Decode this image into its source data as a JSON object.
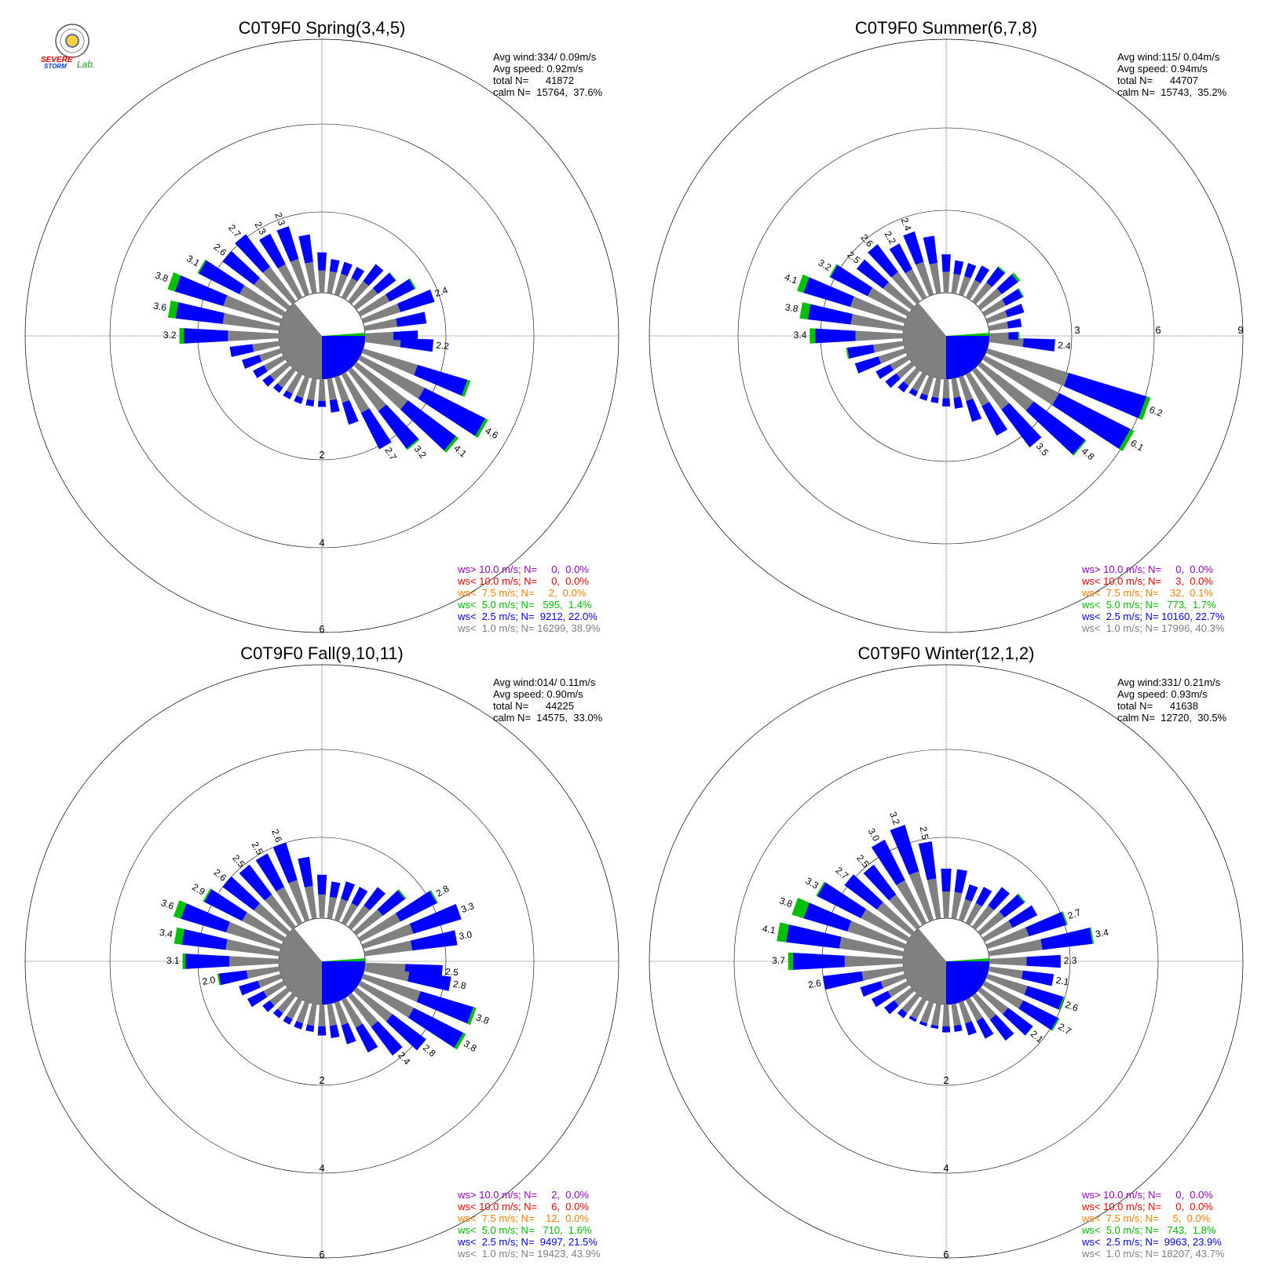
{
  "logo": {
    "lines": [
      "SEVERE",
      "STORM",
      "Lab."
    ],
    "name": "severe-storm-lab-logo"
  },
  "colors": {
    "gray": "#808080",
    "blue": "#0000ff",
    "green": "#00c000",
    "orange": "#ff8000",
    "red": "#ff0000",
    "purple": "#9900cc",
    "calm": "#808080"
  },
  "chart_data": [
    {
      "type": "polar-bar",
      "title": "C0T9F0 Spring(3,4,5)",
      "stats": [
        "Avg wind:334/ 0.09m/s",
        "Avg speed: 0.92m/s",
        "total N=      41872",
        "calm N=  15764,  37.6%"
      ],
      "ring_labels": [
        "2",
        "4",
        "6"
      ],
      "calm_pct": 37.6,
      "legend": [
        {
          "text": "ws> 10.0 m/s; N=     0,  0.0%",
          "color": "#9900cc"
        },
        {
          "text": "ws< 10.0 m/s; N=     0,  0.0%",
          "color": "#ff0000"
        },
        {
          "text": "ws<  7.5 m/s; N=     2,  0.0%",
          "color": "#ff8000"
        },
        {
          "text": "ws<  5.0 m/s; N=   595,  1.4%",
          "color": "#00c000"
        },
        {
          "text": "ws<  2.5 m/s; N=  9212, 22.0%",
          "color": "#0000ff"
        },
        {
          "text": "ws<  1.0 m/s; N= 16299, 38.9%",
          "color": "#808080"
        }
      ],
      "directions": [
        {
          "dir": 95,
          "total": 2.2,
          "green": 0.0,
          "label": "2.2"
        },
        {
          "dir": 110,
          "total": 3.6,
          "green": 0.1
        },
        {
          "dir": 120,
          "total": 4.6,
          "green": 0.1,
          "label": "4.6"
        },
        {
          "dir": 130,
          "total": 4.1,
          "green": 0.1,
          "label": "4.1"
        },
        {
          "dir": 140,
          "total": 3.2,
          "green": 0.05,
          "label": "3.2"
        },
        {
          "dir": 150,
          "total": 2.7,
          "green": 0.0,
          "label": "2.7"
        },
        {
          "dir": 160,
          "total": 1.6,
          "green": 0.0
        },
        {
          "dir": 170,
          "total": 1.1,
          "green": 0.0
        },
        {
          "dir": 180,
          "total": 0.9,
          "green": 0.0
        },
        {
          "dir": 190,
          "total": 0.9,
          "green": 0.0
        },
        {
          "dir": 200,
          "total": 0.9,
          "green": 0.0
        },
        {
          "dir": 210,
          "total": 0.9,
          "green": 0.0
        },
        {
          "dir": 220,
          "total": 0.9,
          "green": 0.0
        },
        {
          "dir": 230,
          "total": 1.0,
          "green": 0.0
        },
        {
          "dir": 240,
          "total": 1.1,
          "green": 0.0
        },
        {
          "dir": 250,
          "total": 1.3,
          "green": 0.0
        },
        {
          "dir": 260,
          "total": 1.6,
          "green": 0.0
        },
        {
          "dir": 270,
          "total": 3.2,
          "green": 0.15,
          "label": "3.2"
        },
        {
          "dir": 280,
          "total": 3.6,
          "green": 0.25,
          "label": "3.6"
        },
        {
          "dir": 290,
          "total": 3.8,
          "green": 0.25,
          "label": "3.8"
        },
        {
          "dir": 300,
          "total": 3.1,
          "green": 0.05,
          "label": "3.1"
        },
        {
          "dir": 310,
          "total": 2.6,
          "green": 0.0,
          "label": "2.6"
        },
        {
          "dir": 320,
          "total": 2.7,
          "green": 0.0,
          "label": "2.7"
        },
        {
          "dir": 330,
          "total": 2.3,
          "green": 0.0,
          "label": "2.3"
        },
        {
          "dir": 340,
          "total": 2.3,
          "green": 0.0,
          "label": "2.3"
        },
        {
          "dir": 350,
          "total": 1.9,
          "green": 0.0
        },
        {
          "dir": 0,
          "total": 1.3,
          "green": 0.0
        },
        {
          "dir": 10,
          "total": 1.1,
          "green": 0.0
        },
        {
          "dir": 20,
          "total": 1.1,
          "green": 0.0
        },
        {
          "dir": 30,
          "total": 1.1,
          "green": 0.0
        },
        {
          "dir": 40,
          "total": 1.5,
          "green": 0.0
        },
        {
          "dir": 50,
          "total": 1.6,
          "green": 0.02
        },
        {
          "dir": 60,
          "total": 2.0,
          "green": 0.05
        },
        {
          "dir": 70,
          "total": 2.4,
          "green": 0.0,
          "label": "2.4"
        },
        {
          "dir": 80,
          "total": 2.0,
          "green": 0.0
        },
        {
          "dir": 90,
          "total": 1.7,
          "green": 0.0
        }
      ]
    },
    {
      "type": "polar-bar",
      "title": "C0T9F0 Summer(6,7,8)",
      "stats": [
        "Avg wind:115/ 0.04m/s",
        "Avg speed: 0.94m/s",
        "total N=      44707",
        "calm N=  15743,  35.2%"
      ],
      "ring_labels": [
        "3",
        "6",
        "9"
      ],
      "calm_pct": 35.2,
      "legend": [
        {
          "text": "ws> 10.0 m/s; N=     0,  0.0%",
          "color": "#9900cc"
        },
        {
          "text": "ws< 10.0 m/s; N=     3,  0.0%",
          "color": "#ff0000"
        },
        {
          "text": "ws<  7.5 m/s; N=    32,  0.1%",
          "color": "#ff8000"
        },
        {
          "text": "ws<  5.0 m/s; N=   773,  1.7%",
          "color": "#00c000"
        },
        {
          "text": "ws<  2.5 m/s; N= 10160, 22.7%",
          "color": "#0000ff"
        },
        {
          "text": "ws<  1.0 m/s; N= 17996, 40.3%",
          "color": "#808080"
        }
      ],
      "directions": [
        {
          "dir": 95,
          "total": 2.4,
          "green": 0.0,
          "label": "2.4"
        },
        {
          "dir": 110,
          "total": 6.2,
          "green": 0.15,
          "label": "6.2"
        },
        {
          "dir": 120,
          "total": 6.1,
          "green": 0.15,
          "label": "6.1"
        },
        {
          "dir": 130,
          "total": 4.8,
          "green": 0.05,
          "label": "4.8"
        },
        {
          "dir": 140,
          "total": 3.5,
          "green": 0.0,
          "label": "3.5"
        },
        {
          "dir": 150,
          "total": 2.5,
          "green": 0.0
        },
        {
          "dir": 160,
          "total": 1.7,
          "green": 0.0
        },
        {
          "dir": 170,
          "total": 1.1,
          "green": 0.0
        },
        {
          "dir": 180,
          "total": 1.0,
          "green": 0.0
        },
        {
          "dir": 190,
          "total": 0.9,
          "green": 0.0
        },
        {
          "dir": 200,
          "total": 0.9,
          "green": 0.0
        },
        {
          "dir": 210,
          "total": 0.9,
          "green": 0.0
        },
        {
          "dir": 220,
          "total": 1.0,
          "green": 0.0
        },
        {
          "dir": 230,
          "total": 1.2,
          "green": 0.0
        },
        {
          "dir": 240,
          "total": 1.3,
          "green": 0.0
        },
        {
          "dir": 250,
          "total": 1.9,
          "green": 0.0
        },
        {
          "dir": 260,
          "total": 2.1,
          "green": 0.05
        },
        {
          "dir": 270,
          "total": 3.4,
          "green": 0.2,
          "label": "3.4"
        },
        {
          "dir": 280,
          "total": 3.8,
          "green": 0.3,
          "label": "3.8"
        },
        {
          "dir": 290,
          "total": 4.1,
          "green": 0.25,
          "label": "4.1"
        },
        {
          "dir": 300,
          "total": 3.2,
          "green": 0.05,
          "label": "3.2"
        },
        {
          "dir": 310,
          "total": 2.5,
          "green": 0.0,
          "label": "2.5"
        },
        {
          "dir": 320,
          "total": 2.6,
          "green": 0.0,
          "label": "2.6"
        },
        {
          "dir": 330,
          "total": 2.2,
          "green": 0.0,
          "label": "2.2"
        },
        {
          "dir": 340,
          "total": 2.4,
          "green": 0.0,
          "label": "2.4"
        },
        {
          "dir": 350,
          "total": 2.1,
          "green": 0.0
        },
        {
          "dir": 0,
          "total": 1.4,
          "green": 0.0
        },
        {
          "dir": 10,
          "total": 1.2,
          "green": 0.0
        },
        {
          "dir": 20,
          "total": 1.2,
          "green": 0.0
        },
        {
          "dir": 30,
          "total": 1.3,
          "green": 0.0
        },
        {
          "dir": 40,
          "total": 1.6,
          "green": 0.05
        },
        {
          "dir": 50,
          "total": 1.8,
          "green": 0.1
        },
        {
          "dir": 60,
          "total": 1.6,
          "green": 0.05
        },
        {
          "dir": 70,
          "total": 1.4,
          "green": 0.0
        },
        {
          "dir": 80,
          "total": 1.2,
          "green": 0.0
        },
        {
          "dir": 90,
          "total": 1.1,
          "green": 0.05
        }
      ]
    },
    {
      "type": "polar-bar",
      "title": "C0T9F0 Fall(9,10,11)",
      "stats": [
        "Avg wind:014/ 0.11m/s",
        "Avg speed: 0.90m/s",
        "total N=      44225",
        "calm N=  14575,  33.0%"
      ],
      "ring_labels": [
        "2",
        "4",
        "6"
      ],
      "calm_pct": 33.0,
      "legend": [
        {
          "text": "ws> 10.0 m/s; N=     2,  0.0%",
          "color": "#9900cc"
        },
        {
          "text": "ws< 10.0 m/s; N=     6,  0.0%",
          "color": "#ff0000"
        },
        {
          "text": "ws<  7.5 m/s; N=    12,  0.0%",
          "color": "#ff8000"
        },
        {
          "text": "ws<  5.0 m/s; N=   710,  1.6%",
          "color": "#00c000"
        },
        {
          "text": "ws<  2.5 m/s; N=  9497, 21.5%",
          "color": "#0000ff"
        },
        {
          "text": "ws<  1.0 m/s; N= 19423, 43.9%",
          "color": "#808080"
        }
      ],
      "directions": [
        {
          "dir": 95,
          "total": 2.5,
          "green": 0.0,
          "label": "2.5"
        },
        {
          "dir": 100,
          "total": 2.8,
          "green": 0.0,
          "label": "2.8"
        },
        {
          "dir": 110,
          "total": 3.8,
          "green": 0.1,
          "label": "3.8"
        },
        {
          "dir": 120,
          "total": 3.8,
          "green": 0.1,
          "label": "3.8"
        },
        {
          "dir": 130,
          "total": 2.8,
          "green": 0.0,
          "label": "2.8"
        },
        {
          "dir": 140,
          "total": 2.4,
          "green": 0.0,
          "label": "2.4"
        },
        {
          "dir": 150,
          "total": 1.9,
          "green": 0.0
        },
        {
          "dir": 160,
          "total": 1.4,
          "green": 0.0
        },
        {
          "dir": 170,
          "total": 1.1,
          "green": 0.0
        },
        {
          "dir": 180,
          "total": 1.0,
          "green": 0.0
        },
        {
          "dir": 190,
          "total": 0.9,
          "green": 0.0
        },
        {
          "dir": 200,
          "total": 0.9,
          "green": 0.0
        },
        {
          "dir": 210,
          "total": 0.9,
          "green": 0.0
        },
        {
          "dir": 220,
          "total": 0.9,
          "green": 0.0
        },
        {
          "dir": 230,
          "total": 1.0,
          "green": 0.0
        },
        {
          "dir": 240,
          "total": 1.3,
          "green": 0.0
        },
        {
          "dir": 250,
          "total": 1.4,
          "green": 0.0
        },
        {
          "dir": 260,
          "total": 2.0,
          "green": 0.05,
          "label": "2.0"
        },
        {
          "dir": 270,
          "total": 3.1,
          "green": 0.1,
          "label": "3.1"
        },
        {
          "dir": 280,
          "total": 3.4,
          "green": 0.25,
          "label": "3.4"
        },
        {
          "dir": 290,
          "total": 3.6,
          "green": 0.25,
          "label": "3.6"
        },
        {
          "dir": 300,
          "total": 2.9,
          "green": 0.05,
          "label": "2.9"
        },
        {
          "dir": 310,
          "total": 2.6,
          "green": 0.0,
          "label": "2.6"
        },
        {
          "dir": 320,
          "total": 2.5,
          "green": 0.0,
          "label": "2.5"
        },
        {
          "dir": 330,
          "total": 2.5,
          "green": 0.0,
          "label": "2.5"
        },
        {
          "dir": 340,
          "total": 2.6,
          "green": 0.0,
          "label": "2.6"
        },
        {
          "dir": 350,
          "total": 2.0,
          "green": 0.0
        },
        {
          "dir": 0,
          "total": 1.4,
          "green": 0.0
        },
        {
          "dir": 10,
          "total": 1.2,
          "green": 0.0
        },
        {
          "dir": 20,
          "total": 1.3,
          "green": 0.0
        },
        {
          "dir": 30,
          "total": 1.3,
          "green": 0.0
        },
        {
          "dir": 40,
          "total": 1.6,
          "green": 0.0
        },
        {
          "dir": 50,
          "total": 2.0,
          "green": 0.05
        },
        {
          "dir": 60,
          "total": 2.8,
          "green": 0.05,
          "label": "2.8"
        },
        {
          "dir": 70,
          "total": 3.3,
          "green": 0.0,
          "label": "3.3"
        },
        {
          "dir": 80,
          "total": 3.0,
          "green": 0.0,
          "label": "3.0"
        }
      ]
    },
    {
      "type": "polar-bar",
      "title": "C0T9F0 Winter(12,1,2)",
      "stats": [
        "Avg wind:331/ 0.21m/s",
        "Avg speed: 0.93m/s",
        "total N=      41638",
        "calm N=  12720,  30.5%"
      ],
      "ring_labels": [
        "2",
        "4",
        "6"
      ],
      "calm_pct": 30.5,
      "legend": [
        {
          "text": "ws> 10.0 m/s; N=     0,  0.0%",
          "color": "#9900cc"
        },
        {
          "text": "ws< 10.0 m/s; N=     0,  0.0%",
          "color": "#ff0000"
        },
        {
          "text": "ws<  7.5 m/s; N=     5,  0.0%",
          "color": "#ff8000"
        },
        {
          "text": "ws<  5.0 m/s; N=   743,  1.8%",
          "color": "#00c000"
        },
        {
          "text": "ws<  2.5 m/s; N=  9963, 23.9%",
          "color": "#0000ff"
        },
        {
          "text": "ws<  1.0 m/s; N= 18207, 43.7%",
          "color": "#808080"
        }
      ],
      "directions": [
        {
          "dir": 90,
          "total": 2.3,
          "green": 0.0,
          "label": "2.3"
        },
        {
          "dir": 100,
          "total": 2.1,
          "green": 0.0,
          "label": "2.1"
        },
        {
          "dir": 110,
          "total": 2.6,
          "green": 0.05,
          "label": "2.6"
        },
        {
          "dir": 120,
          "total": 2.7,
          "green": 0.05,
          "label": "2.7"
        },
        {
          "dir": 130,
          "total": 2.1,
          "green": 0.0,
          "label": "2.1"
        },
        {
          "dir": 140,
          "total": 1.8,
          "green": 0.0
        },
        {
          "dir": 150,
          "total": 1.4,
          "green": 0.0
        },
        {
          "dir": 160,
          "total": 1.1,
          "green": 0.0
        },
        {
          "dir": 170,
          "total": 0.9,
          "green": 0.0
        },
        {
          "dir": 180,
          "total": 0.9,
          "green": 0.0
        },
        {
          "dir": 190,
          "total": 0.8,
          "green": 0.0
        },
        {
          "dir": 200,
          "total": 0.8,
          "green": 0.0
        },
        {
          "dir": 210,
          "total": 0.8,
          "green": 0.0
        },
        {
          "dir": 220,
          "total": 0.9,
          "green": 0.0
        },
        {
          "dir": 230,
          "total": 1.1,
          "green": 0.0
        },
        {
          "dir": 240,
          "total": 1.3,
          "green": 0.0
        },
        {
          "dir": 250,
          "total": 1.5,
          "green": 0.0
        },
        {
          "dir": 260,
          "total": 2.6,
          "green": 0.0,
          "label": "2.6"
        },
        {
          "dir": 270,
          "total": 3.7,
          "green": 0.15,
          "label": "3.7"
        },
        {
          "dir": 280,
          "total": 4.1,
          "green": 0.3,
          "label": "4.1"
        },
        {
          "dir": 290,
          "total": 3.8,
          "green": 0.4,
          "label": "3.8"
        },
        {
          "dir": 300,
          "total": 3.3,
          "green": 0.05,
          "label": "3.3"
        },
        {
          "dir": 310,
          "total": 2.7,
          "green": 0.0,
          "label": "2.7"
        },
        {
          "dir": 320,
          "total": 2.5,
          "green": 0.0,
          "label": "2.5"
        },
        {
          "dir": 330,
          "total": 3.0,
          "green": 0.0,
          "label": "3.0"
        },
        {
          "dir": 340,
          "total": 3.2,
          "green": 0.0,
          "label": "3.2"
        },
        {
          "dir": 350,
          "total": 2.5,
          "green": 0.0,
          "label": "2.5"
        },
        {
          "dir": 0,
          "total": 1.6,
          "green": 0.0
        },
        {
          "dir": 10,
          "total": 1.6,
          "green": 0.0
        },
        {
          "dir": 20,
          "total": 1.2,
          "green": 0.0
        },
        {
          "dir": 30,
          "total": 1.3,
          "green": 0.0
        },
        {
          "dir": 40,
          "total": 1.6,
          "green": 0.0
        },
        {
          "dir": 50,
          "total": 1.8,
          "green": 0.05
        },
        {
          "dir": 60,
          "total": 1.9,
          "green": 0.0
        },
        {
          "dir": 70,
          "total": 2.7,
          "green": 0.05,
          "label": "2.7"
        },
        {
          "dir": 80,
          "total": 3.4,
          "green": 0.05,
          "label": "3.4"
        }
      ]
    }
  ]
}
